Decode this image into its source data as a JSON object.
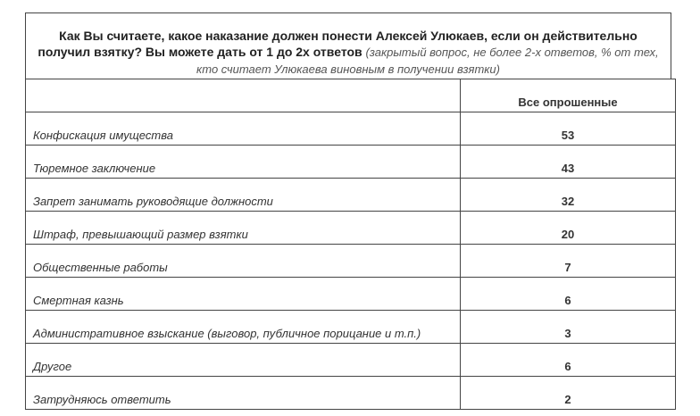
{
  "header": {
    "title": "Как Вы считаете, какое наказание должен понести Алексей Улюкаев, если он действительно получил взятку? Вы можете дать от 1 до 2х ответов",
    "note": "(закрытый вопрос, не более 2-х ответов, % от тех, кто считает Улюкаева виновным в получении взятки)"
  },
  "table": {
    "columns": [
      "Все опрошенные"
    ],
    "rows": [
      [
        "Конфискация имущества",
        53
      ],
      [
        "Тюремное заключение",
        43
      ],
      [
        "Запрет занимать руководящие должности",
        32
      ],
      [
        "Штраф, превышающий размер взятки",
        20
      ],
      [
        "Общественные работы",
        7
      ],
      [
        "Смертная казнь",
        6
      ],
      [
        "Административное взыскание (выговор, публичное порицание и т.п.)",
        3
      ],
      [
        "Другое",
        6
      ],
      [
        "Затрудняюсь ответить",
        2
      ]
    ]
  }
}
